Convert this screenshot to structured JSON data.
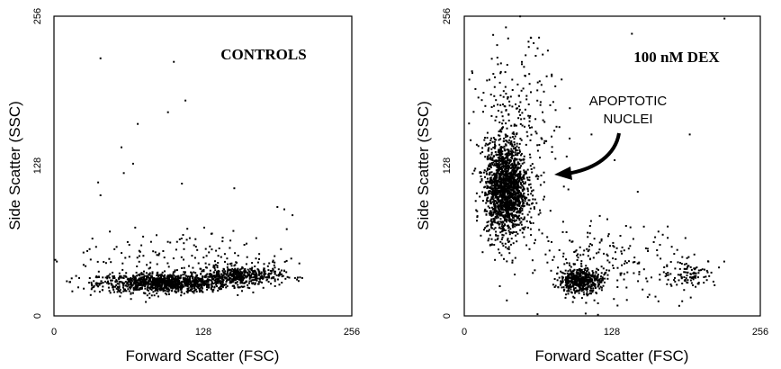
{
  "chart_data": [
    {
      "type": "scatter",
      "title": "CONTROLS",
      "xlabel": "Forward Scatter (FSC)",
      "ylabel": "Side Scatter (SSC)",
      "xlim": [
        0,
        256
      ],
      "ylim": [
        0,
        256
      ],
      "xticks": [
        "0",
        "128",
        "256"
      ],
      "yticks": [
        "0",
        "128",
        "256"
      ],
      "grid": false,
      "clusters": [
        {
          "cx": 95,
          "cy": 28,
          "sx": 28,
          "sy": 4,
          "n": 1100
        },
        {
          "cx": 160,
          "cy": 34,
          "sx": 18,
          "sy": 4,
          "n": 450
        },
        {
          "cx": 110,
          "cy": 50,
          "sx": 45,
          "sy": 12,
          "n": 160
        }
      ],
      "outliers": [
        [
          40,
          220
        ],
        [
          103,
          217
        ],
        [
          113,
          184
        ],
        [
          98,
          174
        ],
        [
          72,
          164
        ],
        [
          58,
          144
        ],
        [
          68,
          130
        ],
        [
          60,
          122
        ],
        [
          110,
          113
        ],
        [
          155,
          109
        ],
        [
          38,
          114
        ],
        [
          40,
          103
        ],
        [
          198,
          91
        ],
        [
          205,
          86
        ],
        [
          192,
          93
        ],
        [
          33,
          66
        ],
        [
          48,
          72
        ],
        [
          185,
          45
        ],
        [
          200,
          47
        ]
      ]
    },
    {
      "type": "scatter",
      "title": "100 nM DEX",
      "xlabel": "Forward Scatter (FSC)",
      "ylabel": "Side Scatter (SSC)",
      "xlim": [
        0,
        256
      ],
      "ylim": [
        0,
        256
      ],
      "xticks": [
        "0",
        "128",
        "256"
      ],
      "yticks": [
        "0",
        "128",
        "256"
      ],
      "grid": false,
      "annotation": "APOPTOTIC\nNUCLEI",
      "arrow_target": [
        78,
        118
      ],
      "clusters": [
        {
          "cx": 36,
          "cy": 108,
          "sx": 9,
          "sy": 20,
          "n": 1700
        },
        {
          "cx": 45,
          "cy": 160,
          "sx": 18,
          "sy": 35,
          "n": 260
        },
        {
          "cx": 100,
          "cy": 30,
          "sx": 9,
          "sy": 5,
          "n": 500
        },
        {
          "cx": 120,
          "cy": 45,
          "sx": 35,
          "sy": 18,
          "n": 220
        },
        {
          "cx": 195,
          "cy": 36,
          "sx": 12,
          "sy": 6,
          "n": 110
        }
      ],
      "outliers": [
        [
          25,
          240
        ],
        [
          38,
          237
        ],
        [
          60,
          233
        ],
        [
          145,
          241
        ],
        [
          225,
          254
        ],
        [
          195,
          155
        ],
        [
          110,
          155
        ],
        [
          130,
          133
        ],
        [
          150,
          106
        ],
        [
          90,
          108
        ]
      ]
    }
  ]
}
